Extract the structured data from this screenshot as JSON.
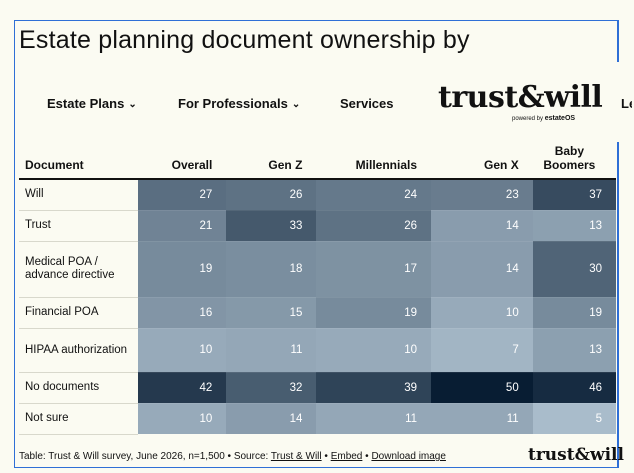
{
  "title": "Estate planning document ownership by",
  "nav": {
    "estate_plans": "Estate Plans",
    "for_professionals": "For Professionals",
    "services": "Services",
    "logo": "trust&will",
    "logo_powered": "powered by",
    "logo_powered_brand": "estateOS",
    "cut_item": "Le"
  },
  "table": {
    "headers": [
      "Document",
      "Overall",
      "Gen Z",
      "Millennials",
      "Gen X",
      "Baby Boomers"
    ],
    "rows": [
      {
        "label": "Will",
        "values": [
          27,
          26,
          24,
          23,
          37
        ]
      },
      {
        "label": "Trust",
        "values": [
          21,
          33,
          26,
          14,
          13
        ]
      },
      {
        "label": "Medical POA / advance directive",
        "values": [
          19,
          18,
          17,
          14,
          30
        ]
      },
      {
        "label": "Financial POA",
        "values": [
          16,
          15,
          19,
          10,
          19
        ]
      },
      {
        "label": "HIPAA authorization",
        "values": [
          10,
          11,
          10,
          7,
          13
        ]
      },
      {
        "label": "No documents",
        "values": [
          42,
          32,
          39,
          50,
          46
        ]
      },
      {
        "label": "Not sure",
        "values": [
          10,
          14,
          11,
          11,
          5
        ]
      }
    ]
  },
  "footer": {
    "prefix": "Table: Trust & Will survey, June 2026, n=1,500 • Source: ",
    "source_link": "Trust & Will",
    "sep1": " • ",
    "embed": "Embed",
    "sep2": " • ",
    "download": "Download image",
    "logo": "trust&will"
  },
  "colors": {
    "scale_low": "#a9bccb",
    "scale_high": "#081d33"
  }
}
